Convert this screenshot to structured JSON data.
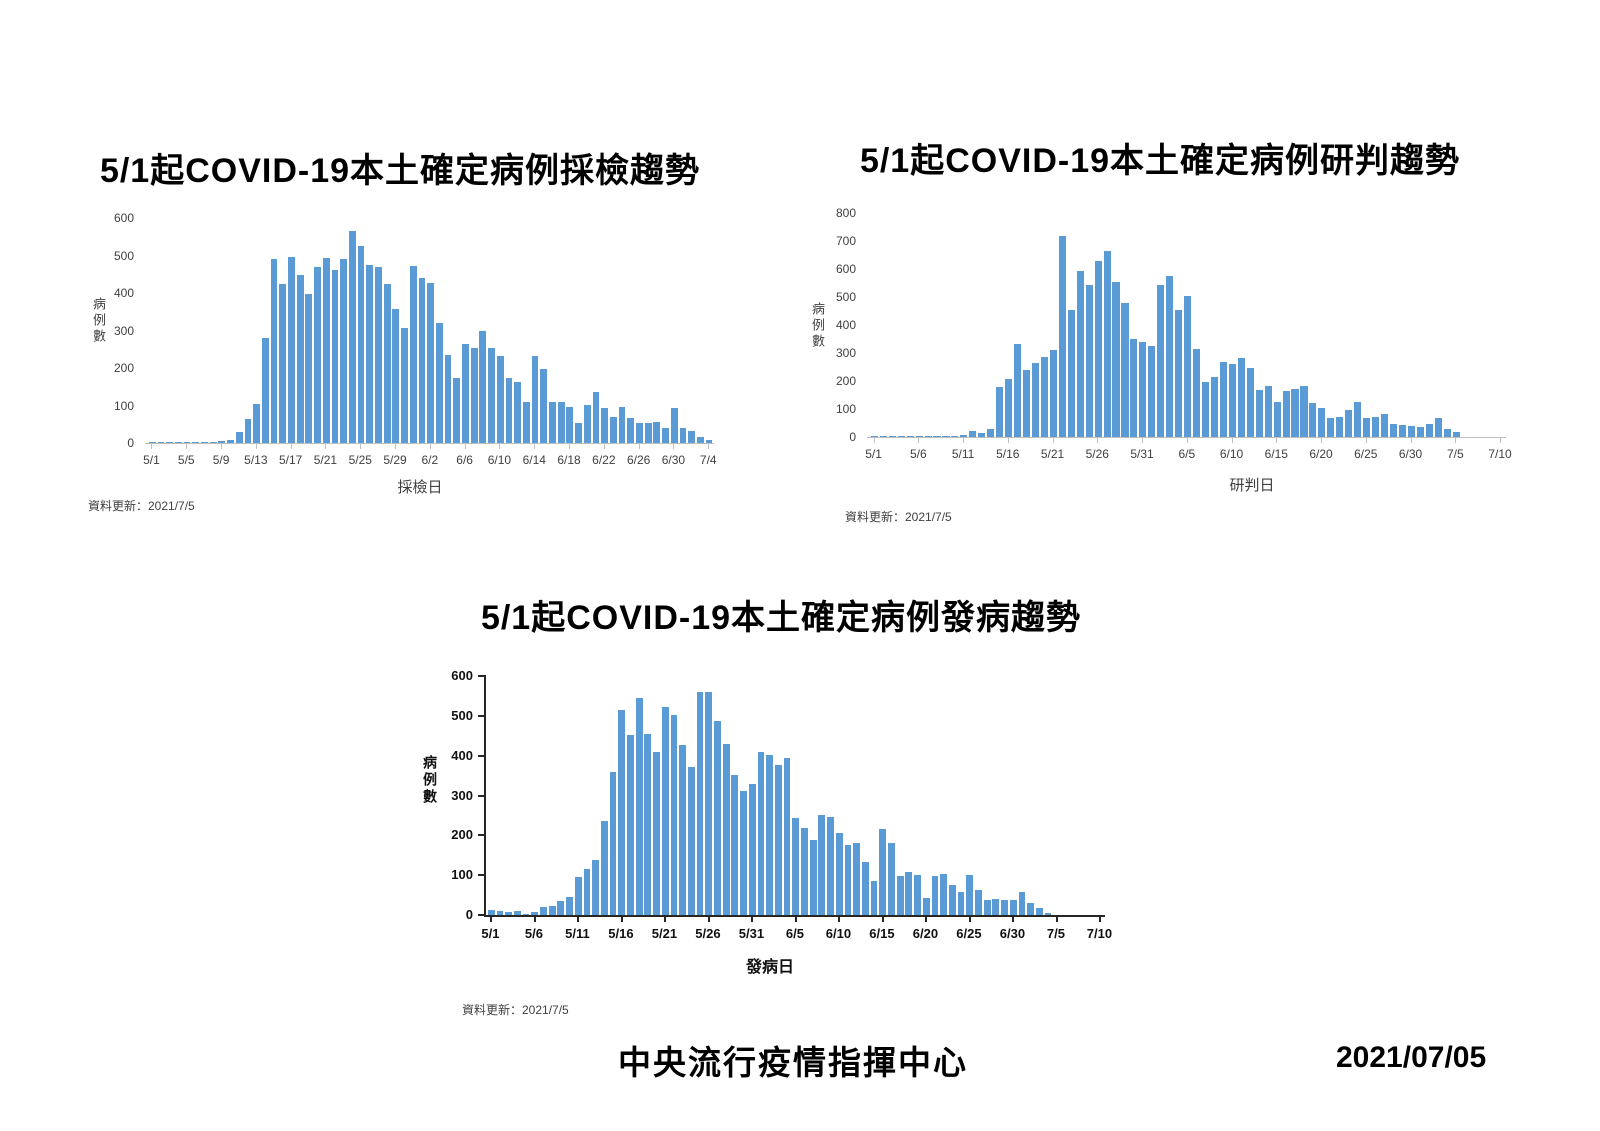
{
  "footer": {
    "organization": "中央流行疫情指揮中心",
    "date": "2021/07/05"
  },
  "chart_data": [
    {
      "type": "bar",
      "title": "5/1起COVID-19本土確定病例採檢趨勢",
      "xlabel": "採檢日",
      "ylabel": "病例數",
      "update_note": "資料更新：2021/7/5",
      "ylim": [
        0,
        600
      ],
      "yticks": [
        0,
        100,
        200,
        300,
        400,
        500,
        600
      ],
      "xticks": [
        "5/1",
        "5/5",
        "5/9",
        "5/13",
        "5/17",
        "5/21",
        "5/25",
        "5/29",
        "6/2",
        "6/6",
        "6/10",
        "6/14",
        "6/18",
        "6/22",
        "6/26",
        "6/30",
        "7/4"
      ],
      "xtick_step": 4,
      "axis_days": 65,
      "bar_color": "#5B9BD5",
      "axis_style": "light",
      "categories": [
        "5/1",
        "5/2",
        "5/3",
        "5/4",
        "5/5",
        "5/6",
        "5/7",
        "5/8",
        "5/9",
        "5/10",
        "5/11",
        "5/12",
        "5/13",
        "5/14",
        "5/15",
        "5/16",
        "5/17",
        "5/18",
        "5/19",
        "5/20",
        "5/21",
        "5/22",
        "5/23",
        "5/24",
        "5/25",
        "5/26",
        "5/27",
        "5/28",
        "5/29",
        "5/30",
        "5/31",
        "6/1",
        "6/2",
        "6/3",
        "6/4",
        "6/5",
        "6/6",
        "6/7",
        "6/8",
        "6/9",
        "6/10",
        "6/11",
        "6/12",
        "6/13",
        "6/14",
        "6/15",
        "6/16",
        "6/17",
        "6/18",
        "6/19",
        "6/20",
        "6/21",
        "6/22",
        "6/23",
        "6/24",
        "6/25",
        "6/26",
        "6/27",
        "6/28",
        "6/29",
        "6/30",
        "7/1",
        "7/2",
        "7/3",
        "7/4"
      ],
      "values": [
        2,
        2,
        2,
        2,
        2,
        2,
        3,
        3,
        6,
        8,
        30,
        65,
        103,
        280,
        490,
        425,
        497,
        448,
        398,
        470,
        493,
        460,
        490,
        565,
        525,
        475,
        470,
        424,
        356,
        306,
        473,
        441,
        426,
        319,
        234,
        173,
        264,
        252,
        299,
        253,
        231,
        172,
        163,
        109,
        231,
        198,
        109,
        109,
        96,
        52,
        100,
        135,
        92,
        70,
        96,
        67,
        52,
        52,
        55,
        39,
        92,
        39,
        33,
        16,
        8
      ]
    },
    {
      "type": "bar",
      "title": "5/1起COVID-19本土確定病例研判趨勢",
      "xlabel": "研判日",
      "ylabel": "病例數",
      "update_note": "資料更新：2021/7/5",
      "ylim": [
        0,
        800
      ],
      "yticks": [
        0,
        100,
        200,
        300,
        400,
        500,
        600,
        700,
        800
      ],
      "xticks": [
        "5/1",
        "5/6",
        "5/11",
        "5/16",
        "5/21",
        "5/26",
        "5/31",
        "6/5",
        "6/10",
        "6/15",
        "6/20",
        "6/25",
        "6/30",
        "7/5",
        "7/10"
      ],
      "xtick_step": 5,
      "axis_days": 71,
      "bar_color": "#5B9BD5",
      "axis_style": "light",
      "categories": [
        "5/1",
        "5/2",
        "5/3",
        "5/4",
        "5/5",
        "5/6",
        "5/7",
        "5/8",
        "5/9",
        "5/10",
        "5/11",
        "5/12",
        "5/13",
        "5/14",
        "5/15",
        "5/16",
        "5/17",
        "5/18",
        "5/19",
        "5/20",
        "5/21",
        "5/22",
        "5/23",
        "5/24",
        "5/25",
        "5/26",
        "5/27",
        "5/28",
        "5/29",
        "5/30",
        "5/31",
        "6/1",
        "6/2",
        "6/3",
        "6/4",
        "6/5",
        "6/6",
        "6/7",
        "6/8",
        "6/9",
        "6/10",
        "6/11",
        "6/12",
        "6/13",
        "6/14",
        "6/15",
        "6/16",
        "6/17",
        "6/18",
        "6/19",
        "6/20",
        "6/21",
        "6/22",
        "6/23",
        "6/24",
        "6/25",
        "6/26",
        "6/27",
        "6/28",
        "6/29",
        "6/30",
        "7/1",
        "7/2",
        "7/3",
        "7/4",
        "7/5"
      ],
      "values": [
        5,
        5,
        5,
        3,
        3,
        3,
        5,
        5,
        3,
        5,
        8,
        20,
        15,
        30,
        180,
        206,
        333,
        240,
        265,
        286,
        312,
        718,
        452,
        592,
        542,
        630,
        665,
        552,
        480,
        351,
        339,
        325,
        544,
        576,
        455,
        502,
        316,
        197,
        216,
        268,
        260,
        281,
        245,
        169,
        181,
        126,
        163,
        171,
        181,
        121,
        103,
        67,
        71,
        98,
        124,
        69,
        73,
        82,
        47,
        44,
        41,
        35,
        47,
        67,
        27,
        18
      ]
    },
    {
      "type": "bar",
      "title": "5/1起COVID-19本土確定病例發病趨勢",
      "xlabel": "發病日",
      "ylabel": "病例數",
      "update_note": "資料更新：2021/7/5",
      "ylim": [
        0,
        600
      ],
      "yticks": [
        0,
        100,
        200,
        300,
        400,
        500,
        600
      ],
      "xticks": [
        "5/1",
        "5/6",
        "5/11",
        "5/16",
        "5/21",
        "5/26",
        "5/31",
        "6/5",
        "6/10",
        "6/15",
        "6/20",
        "6/25",
        "6/30",
        "7/5",
        "7/10"
      ],
      "xtick_step": 5,
      "axis_days": 71,
      "bar_color": "#5B9BD5",
      "axis_style": "bold",
      "categories": [
        "5/1",
        "5/2",
        "5/3",
        "5/4",
        "5/5",
        "5/6",
        "5/7",
        "5/8",
        "5/9",
        "5/10",
        "5/11",
        "5/12",
        "5/13",
        "5/14",
        "5/15",
        "5/16",
        "5/17",
        "5/18",
        "5/19",
        "5/20",
        "5/21",
        "5/22",
        "5/23",
        "5/24",
        "5/25",
        "5/26",
        "5/27",
        "5/28",
        "5/29",
        "5/30",
        "5/31",
        "6/1",
        "6/2",
        "6/3",
        "6/4",
        "6/5",
        "6/6",
        "6/7",
        "6/8",
        "6/9",
        "6/10",
        "6/11",
        "6/12",
        "6/13",
        "6/14",
        "6/15",
        "6/16",
        "6/17",
        "6/18",
        "6/19",
        "6/20",
        "6/21",
        "6/22",
        "6/23",
        "6/24",
        "6/25",
        "6/26",
        "6/27",
        "6/28",
        "6/29",
        "6/30",
        "7/1",
        "7/2",
        "7/3",
        "7/4"
      ],
      "values": [
        12,
        10,
        8,
        10,
        3,
        8,
        20,
        22,
        35,
        45,
        96,
        115,
        138,
        235,
        358,
        515,
        452,
        545,
        455,
        408,
        522,
        501,
        428,
        371,
        560,
        560,
        488,
        430,
        351,
        312,
        330,
        408,
        402,
        377,
        393,
        244,
        219,
        189,
        250,
        246,
        206,
        176,
        181,
        133,
        86,
        215,
        180,
        98,
        108,
        100,
        42,
        97,
        103,
        76,
        58,
        100,
        62,
        38,
        40,
        38,
        38,
        58,
        30,
        18,
        6
      ]
    }
  ]
}
